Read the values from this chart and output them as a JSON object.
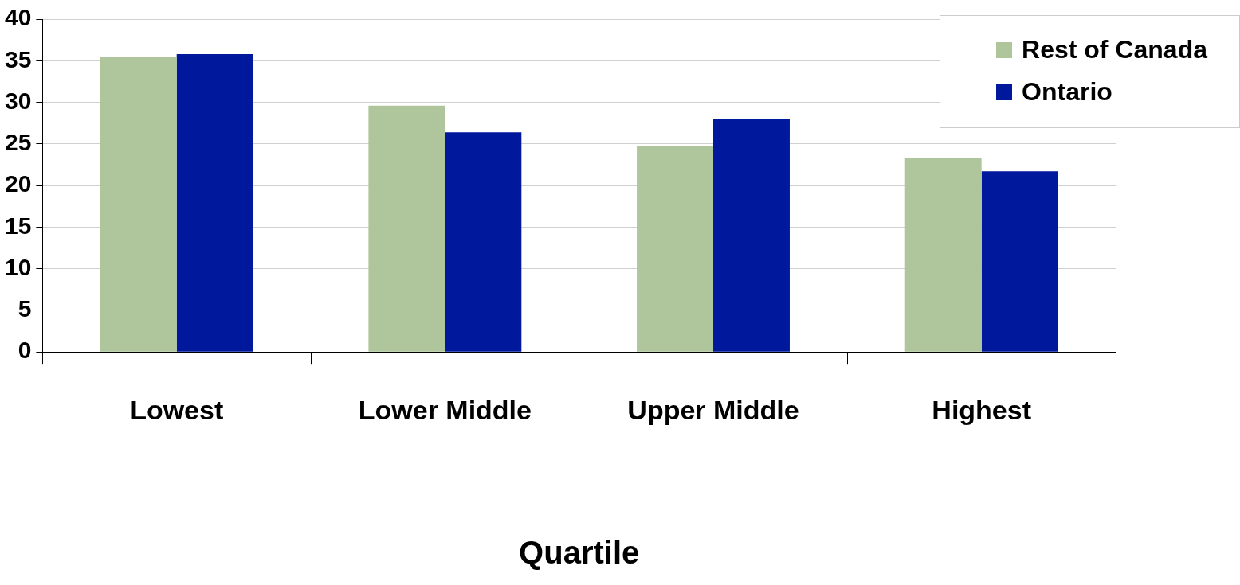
{
  "chart_data": {
    "type": "bar",
    "xlabel": "Quartile",
    "categories": [
      "Lowest",
      "Lower Middle",
      "Upper Middle",
      "Highest"
    ],
    "series": [
      {
        "name": "Rest of Canada",
        "color": "#afc59c",
        "values": [
          35.4,
          29.6,
          24.8,
          23.3
        ]
      },
      {
        "name": "Ontario",
        "color": "#00189c",
        "values": [
          35.8,
          26.4,
          28.0,
          21.7
        ]
      }
    ],
    "ylim": [
      0,
      40
    ],
    "yticks": [
      0,
      5,
      10,
      15,
      20,
      25,
      30,
      35,
      40
    ],
    "grid": "y",
    "legend": "top right"
  }
}
